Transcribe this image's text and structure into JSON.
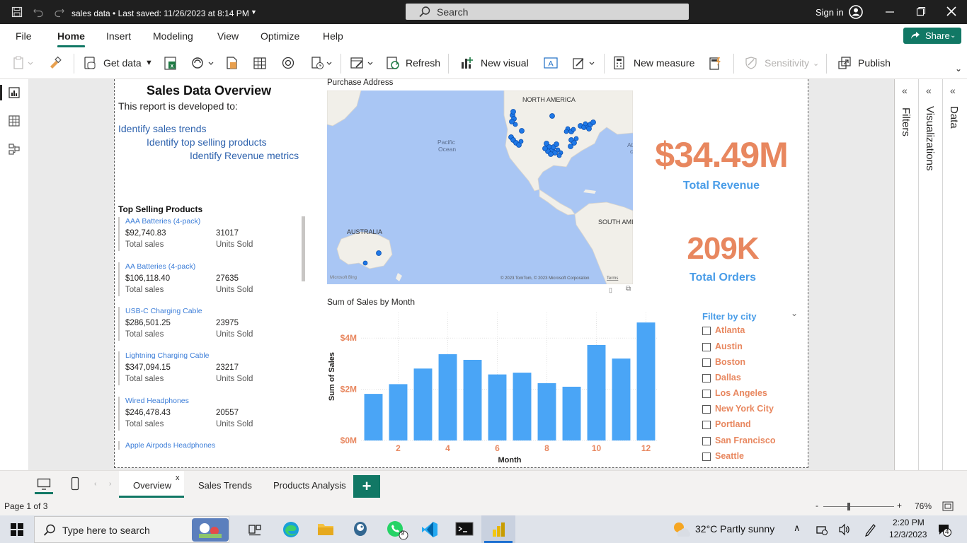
{
  "titlebar": {
    "doc_title": "sales data • Last saved: 11/26/2023 at 8:14 PM",
    "search_placeholder": "Search",
    "signin": "Sign in"
  },
  "menu": {
    "items": [
      "File",
      "Home",
      "Insert",
      "Modeling",
      "View",
      "Optimize",
      "Help"
    ],
    "active": "Home",
    "share": "Share"
  },
  "ribbon": {
    "get_data": "Get data",
    "refresh": "Refresh",
    "new_visual": "New visual",
    "new_measure": "New measure",
    "sensitivity": "Sensitivity",
    "publish": "Publish"
  },
  "report": {
    "title": "Sales Data Overview",
    "subtitle": "This report is developed to:",
    "goals": [
      "Identify sales trends",
      "Identify top selling products",
      "Identify Revenue metrics"
    ],
    "top_products_title": "Top Selling Products",
    "products": [
      {
        "name": "AAA Batteries (4-pack)",
        "sales": "$92,740.83",
        "units": "31017",
        "sales_label": "Total sales",
        "units_label": "Units Sold"
      },
      {
        "name": "AA Batteries (4-pack)",
        "sales": "$106,118.40",
        "units": "27635",
        "sales_label": "Total sales",
        "units_label": "Units Sold"
      },
      {
        "name": "USB-C Charging Cable",
        "sales": "$286,501.25",
        "units": "23975",
        "sales_label": "Total sales",
        "units_label": "Units Sold"
      },
      {
        "name": "Lightning Charging Cable",
        "sales": "$347,094.15",
        "units": "23217",
        "sales_label": "Total sales",
        "units_label": "Units Sold"
      },
      {
        "name": "Wired Headphones",
        "sales": "$246,478.43",
        "units": "20557",
        "sales_label": "Total sales",
        "units_label": "Units Sold"
      },
      {
        "name": "Apple Airpods Headphones"
      }
    ],
    "map": {
      "title": "Purchase Address",
      "labels": {
        "north_america": "NORTH AMERICA",
        "pacific": "Pacific",
        "ocean": "Ocean",
        "australia": "AUSTRALIA",
        "south_america": "SOUTH AMI",
        "atlantic": "At",
        "atlantic2": "c",
        "copyright": "© 2023 TomTom, © 2023 Microsoft Corporation",
        "terms": "Terms",
        "bing": "Microsoft Bing"
      }
    },
    "kpis": {
      "revenue_value": "$34.49M",
      "revenue_label": "Total Revenue",
      "orders_value": "209K",
      "orders_label": "Total Orders"
    },
    "slicer": {
      "title": "Filter by city",
      "cities": [
        "Atlanta",
        "Austin",
        "Boston",
        "Dallas",
        "Los Angeles",
        "New York City",
        "Portland",
        "San Francisco",
        "Seattle"
      ]
    }
  },
  "chart_data": {
    "type": "bar",
    "title": "Sum of Sales by Month",
    "xlabel": "Month",
    "ylabel": "Sum of Sales",
    "categories": [
      1,
      2,
      3,
      4,
      5,
      6,
      7,
      8,
      9,
      10,
      11,
      12
    ],
    "x_tick_labels": [
      "2",
      "4",
      "6",
      "8",
      "10",
      "12"
    ],
    "values": [
      1.82,
      2.2,
      2.81,
      3.37,
      3.15,
      2.58,
      2.65,
      2.24,
      2.1,
      3.73,
      3.2,
      4.61
    ],
    "value_unit": "$M",
    "y_tick_labels": [
      "$0M",
      "$2M",
      "$4M"
    ],
    "ylim": [
      0,
      5
    ],
    "bar_color": "#4aa5f6",
    "grid": true
  },
  "tabs": {
    "items": [
      "Overview",
      "Sales Trends",
      "Products Analysis"
    ],
    "active": "Overview",
    "close": "x",
    "add": "+"
  },
  "status": {
    "page": "Page 1 of 3",
    "zoom": "76%",
    "zoom_minus": "-",
    "zoom_plus": "+"
  },
  "taskbar": {
    "search_placeholder": "Type here to search",
    "weather": "32°C  Partly sunny",
    "time": "2:20 PM",
    "date": "12/3/2023",
    "whatsapp_badge": "9",
    "notif_badge": "4"
  },
  "panes": {
    "filters": "Filters",
    "visualizations": "Visualizations",
    "data": "Data"
  },
  "colors": {
    "accent": "#117865",
    "kpi_value": "#e8875f",
    "kpi_label": "#4a9de8",
    "bar": "#4aa5f6",
    "map_point": "#1f78e6"
  }
}
